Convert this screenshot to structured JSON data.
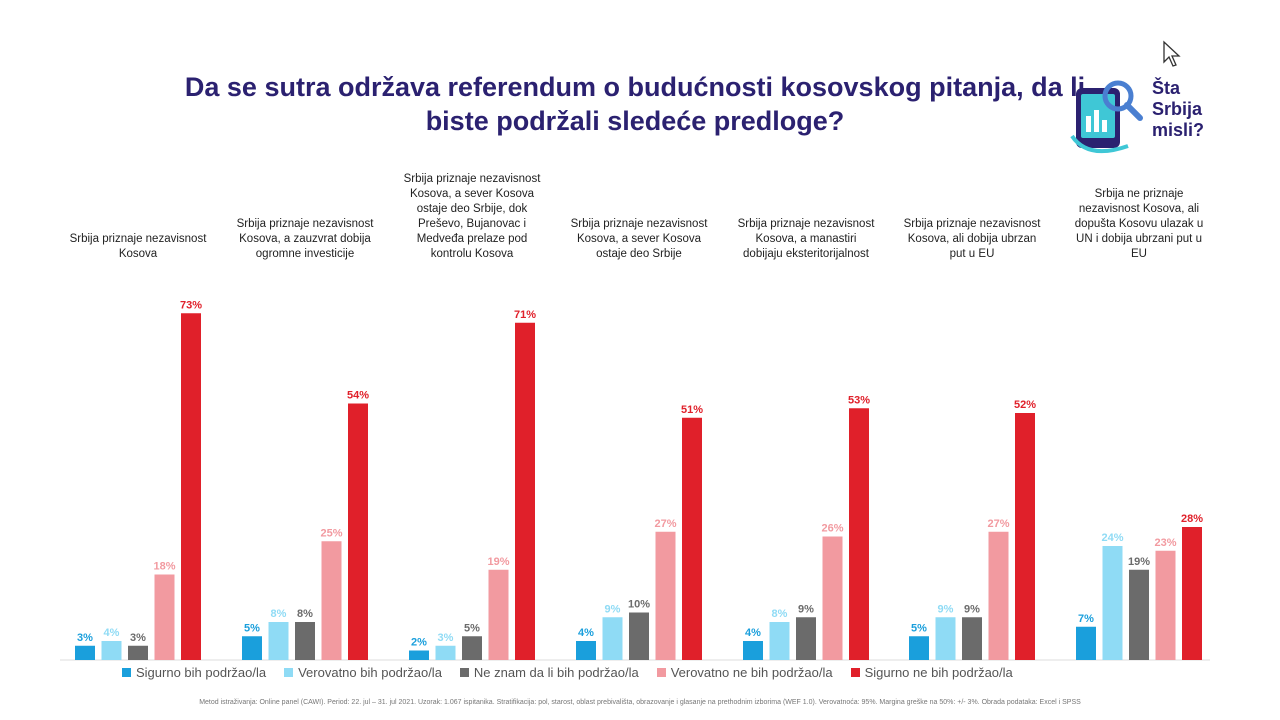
{
  "title": "Da se sutra održava referendum o budućnosti kosovskog pitanja, da li biste podržali sledeće predloge?",
  "logo": {
    "line1": "Šta",
    "line2": "Srbija",
    "line3": "misli?"
  },
  "footnote": "Metod istraživanja: Online panel (CAWI). Period: 22. jul – 31. jul 2021. Uzorak: 1.067 ispitanika. Stratifikacija: pol, starost, oblast prebivališta, obrazovanje i glasanje na prethodnim izborima (WEF 1.0). Verovatnoća: 95%. Margina greške na 50%: +/- 3%. Obrada podataka: Excel i SPSS",
  "colors": {
    "title": "#2b2170",
    "s1": "#1a9fdc",
    "s2": "#8fdbf5",
    "s3": "#6b6b6b",
    "s4": "#f29aa0",
    "s5": "#e0202a"
  },
  "chart_data": {
    "type": "bar",
    "categories": [
      "Srbija priznaje nezavisnost Kosova",
      "Srbija priznaje nezavisnost Kosova, a zauzvrat dobija ogromne investicije",
      "Srbija priznaje nezavisnost Kosova, a sever Kosova ostaje deo Srbije, dok Preševo, Bujanovac i Medveđa prelaze pod kontrolu Kosova",
      "Srbija priznaje nezavisnost Kosova, a sever Kosova ostaje deo Srbije",
      "Srbija priznaje nezavisnost Kosova, a manastiri dobijaju eksteritorijalnost",
      "Srbija priznaje nezavisnost Kosova, ali dobija ubrzan put u EU",
      "Srbija ne priznaje nezavisnost Kosova, ali dopušta Kosovu ulazak u UN i dobija ubrzani put u EU"
    ],
    "series": [
      {
        "name": "Sigurno bih podržao/la",
        "values": [
          3,
          5,
          2,
          4,
          4,
          5,
          7
        ]
      },
      {
        "name": "Verovatno bih podržao/la",
        "values": [
          4,
          8,
          3,
          9,
          8,
          9,
          24
        ]
      },
      {
        "name": "Ne znam da li bih podržao/la",
        "values": [
          3,
          8,
          5,
          10,
          9,
          9,
          19
        ]
      },
      {
        "name": "Verovatno ne bih podržao/la",
        "values": [
          18,
          25,
          19,
          27,
          26,
          27,
          23
        ]
      },
      {
        "name": "Sigurno ne bih podržao/la",
        "values": [
          73,
          54,
          71,
          51,
          53,
          52,
          28
        ]
      }
    ],
    "unit": "%",
    "ylim": [
      0,
      80
    ],
    "grid": false,
    "legend": "bottom"
  }
}
